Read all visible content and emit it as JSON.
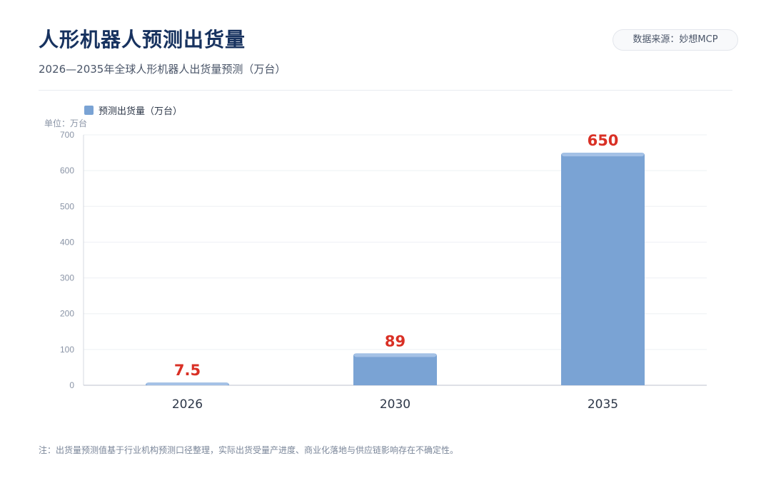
{
  "header": {
    "title": "人形机器人预测出货量",
    "subtitle": "2026—2035年全球人形机器人出货量预测（万台）",
    "source": "数据来源：妙想MCP"
  },
  "footer": {
    "note": "注：出货量预测值基于行业机构预测口径整理，实际出货受量产进度、商业化落地与供应链影响存在不确定性。"
  },
  "colors": {
    "bar": "#7aa3d4",
    "bar_top": "#a4c1e6",
    "value_label": "#d93025",
    "title": "#17325f"
  },
  "chart_data": {
    "type": "bar",
    "categories": [
      "2026",
      "2030",
      "2035"
    ],
    "series": [
      {
        "name": "预测出货量（万台）",
        "values": [
          7.5,
          89,
          650
        ],
        "value_labels": [
          "7.5",
          "89",
          "650"
        ]
      }
    ],
    "ylabel": "单位：万台",
    "ylim": [
      0,
      700
    ],
    "yticks": [
      0,
      100,
      200,
      300,
      400,
      500,
      600,
      700
    ],
    "grid": true,
    "legend_position": "top-left"
  }
}
